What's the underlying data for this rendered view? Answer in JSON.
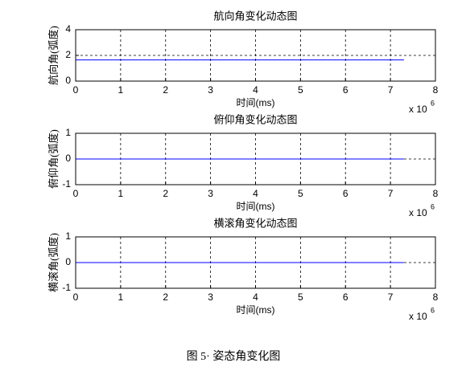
{
  "chart_data": [
    {
      "type": "line",
      "title": "航向角变化动态图",
      "x_label": "时间(ms)",
      "y_label": "航向角(弧度)",
      "x_multiplier": {
        "base": "x 10",
        "power": "6"
      },
      "x": [
        0,
        7.3
      ],
      "values": [
        1.65,
        1.65
      ],
      "color": "#0000ff",
      "xlim": [
        0,
        8
      ],
      "xticks": [
        0,
        1,
        2,
        3,
        4,
        5,
        6,
        7,
        8
      ],
      "ylim": [
        0,
        4
      ],
      "yticks": [
        0,
        2,
        4
      ],
      "grid": true
    },
    {
      "type": "line",
      "title": "俯仰角变化动态图",
      "x_label": "时间(ms)",
      "y_label": "俯仰角(弧度)",
      "x_multiplier": {
        "base": "x 10",
        "power": "6"
      },
      "x": [
        0,
        7.3
      ],
      "values": [
        0,
        0
      ],
      "color": "#0000ff",
      "xlim": [
        0,
        8
      ],
      "xticks": [
        0,
        1,
        2,
        3,
        4,
        5,
        6,
        7,
        8
      ],
      "ylim": [
        -1,
        1
      ],
      "yticks": [
        -1,
        0,
        1
      ],
      "grid": true
    },
    {
      "type": "line",
      "title": "横滚角变化动态图",
      "x_label": "时间(ms)",
      "y_label": "横滚角(弧度)",
      "x_multiplier": {
        "base": "x 10",
        "power": "6"
      },
      "x": [
        0,
        7.3
      ],
      "values": [
        0,
        0
      ],
      "color": "#0000ff",
      "xlim": [
        0,
        8
      ],
      "xticks": [
        0,
        1,
        2,
        3,
        4,
        5,
        6,
        7,
        8
      ],
      "ylim": [
        -1,
        1
      ],
      "yticks": [
        -1,
        0,
        1
      ],
      "grid": true
    }
  ],
  "caption": "图 5· 姿态角变化图"
}
